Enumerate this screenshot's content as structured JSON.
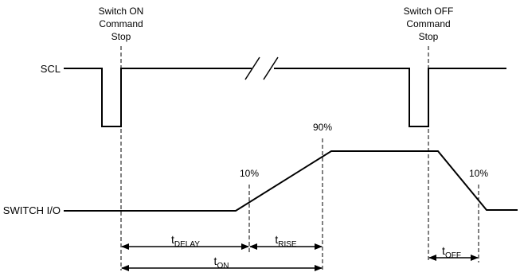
{
  "colors": {
    "line": "#000000",
    "background": "#ffffff"
  },
  "signals": {
    "scl": "SCL",
    "switch_io": "SWITCH I/O"
  },
  "events": {
    "switch_on": [
      "Switch ON",
      "Command",
      "Stop"
    ],
    "switch_off": [
      "Switch OFF",
      "Command",
      "Stop"
    ]
  },
  "levels": {
    "pct_10_rise": "10%",
    "pct_90": "90%",
    "pct_10_fall": "10%"
  },
  "timings": {
    "t_delay": {
      "main": "t",
      "sub": "DELAY"
    },
    "t_rise": {
      "main": "t",
      "sub": "RISE"
    },
    "t_on": {
      "main": "t",
      "sub": "ON"
    },
    "t_off": {
      "main": "t",
      "sub": "OFF"
    }
  }
}
